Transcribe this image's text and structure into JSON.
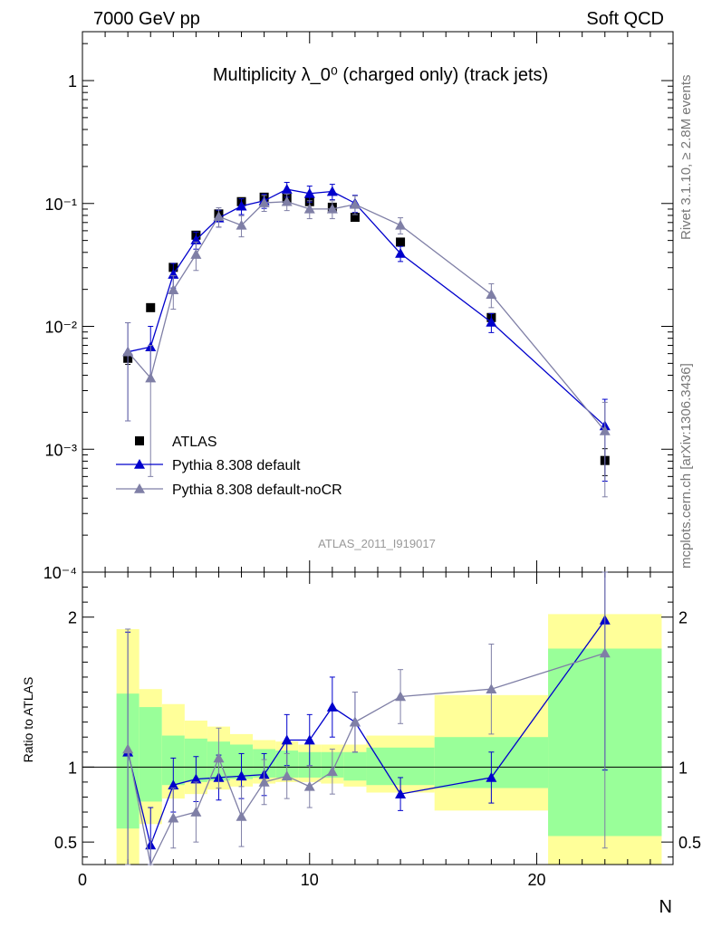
{
  "header": {
    "left": "7000 GeV pp",
    "right": "Soft QCD"
  },
  "side": {
    "top": "Rivet 3.1.10, ≥ 2.8M events",
    "bottom": "mcplots.cern.ch [arXiv:1306.3436]"
  },
  "chart_data": {
    "type": "scatter",
    "title": "Multiplicity λ_0⁰ (charged only) (track jets)",
    "analysis": "ATLAS_2011_I919017",
    "xlabel": "N",
    "ylabel_ratio": "Ratio to ATLAS",
    "xlim": [
      0,
      26
    ],
    "x_ticks": [
      0,
      10,
      20
    ],
    "ylim_main": [
      0.0001,
      2.5
    ],
    "ylog_main": true,
    "y_ticks_main": [
      "10⁻⁴",
      "10⁻³",
      "10⁻²",
      "10⁻¹",
      "1"
    ],
    "ylim_ratio": [
      0.35,
      2.3
    ],
    "y_ticks_ratio": [
      "0.5",
      "1",
      "2"
    ],
    "legend_position": "lower-left",
    "colors": {
      "data": "#000000",
      "default": "#0000cc",
      "noCR": "#7f7fa6",
      "band_inner": "#99ff99",
      "band_outer": "#ffff99"
    },
    "series": [
      {
        "name": "ATLAS",
        "style": "data",
        "x": [
          2,
          3,
          4,
          5,
          6,
          7,
          8,
          9,
          10,
          11,
          12,
          14,
          18,
          23
        ],
        "y": [
          0.0055,
          0.0142,
          0.0302,
          0.0552,
          0.0822,
          0.1035,
          0.1125,
          0.1102,
          0.1035,
          0.0932,
          0.0772,
          0.0485,
          0.0118,
          0.00081
        ],
        "err": [
          0.0006,
          0.0008,
          0.0018,
          0.003,
          0.004,
          0.005,
          0.005,
          0.005,
          0.005,
          0.004,
          0.004,
          0.003,
          0.0009,
          0.0002
        ]
      },
      {
        "name": "Pythia 8.308 default",
        "style": "default",
        "x": [
          2,
          3,
          4,
          5,
          6,
          7,
          8,
          9,
          10,
          11,
          12,
          14,
          18,
          23
        ],
        "y": [
          0.0062,
          0.0068,
          0.0265,
          0.0505,
          0.0762,
          0.0952,
          0.1052,
          0.1305,
          0.1205,
          0.1252,
          0.1005,
          0.0392,
          0.0108,
          0.00155
        ],
        "err": [
          0.0045,
          0.0032,
          0.006,
          0.008,
          0.012,
          0.014,
          0.014,
          0.018,
          0.018,
          0.018,
          0.016,
          0.0055,
          0.0019,
          0.001
        ]
      },
      {
        "name": "Pythia 8.308 default-noCR",
        "style": "noCR",
        "x": [
          2,
          3,
          4,
          5,
          6,
          7,
          8,
          9,
          10,
          11,
          12,
          14,
          18,
          23
        ],
        "y": [
          0.0062,
          0.0038,
          0.0198,
          0.0385,
          0.0782,
          0.0665,
          0.1012,
          0.1035,
          0.0902,
          0.0902,
          0.0982,
          0.0665,
          0.0182,
          0.00141
        ],
        "err": [
          0.0045,
          0.0032,
          0.006,
          0.01,
          0.014,
          0.013,
          0.015,
          0.016,
          0.015,
          0.015,
          0.017,
          0.01,
          0.004,
          0.001
        ]
      }
    ],
    "ratio": {
      "bands": [
        {
          "x0": 1.5,
          "x1": 2.5,
          "inner": [
            0.59,
            1.49
          ],
          "outer": [
            0.1,
            1.92
          ]
        },
        {
          "x0": 2.5,
          "x1": 3.5,
          "inner": [
            0.77,
            1.4
          ],
          "outer": [
            0.62,
            1.52
          ]
        },
        {
          "x0": 3.5,
          "x1": 4.5,
          "inner": [
            0.88,
            1.21
          ],
          "outer": [
            0.79,
            1.42
          ]
        },
        {
          "x0": 4.5,
          "x1": 5.5,
          "inner": [
            0.9,
            1.19
          ],
          "outer": [
            0.82,
            1.31
          ]
        },
        {
          "x0": 5.5,
          "x1": 6.5,
          "inner": [
            0.91,
            1.17
          ],
          "outer": [
            0.85,
            1.27
          ]
        },
        {
          "x0": 6.5,
          "x1": 7.5,
          "inner": [
            0.92,
            1.15
          ],
          "outer": [
            0.87,
            1.22
          ]
        },
        {
          "x0": 7.5,
          "x1": 8.5,
          "inner": [
            0.93,
            1.12
          ],
          "outer": [
            0.89,
            1.18
          ]
        },
        {
          "x0": 8.5,
          "x1": 9.5,
          "inner": [
            0.93,
            1.11
          ],
          "outer": [
            0.9,
            1.17
          ]
        },
        {
          "x0": 9.5,
          "x1": 10.5,
          "inner": [
            0.93,
            1.1
          ],
          "outer": [
            0.9,
            1.15
          ]
        },
        {
          "x0": 10.5,
          "x1": 11.5,
          "inner": [
            0.93,
            1.1
          ],
          "outer": [
            0.89,
            1.15
          ]
        },
        {
          "x0": 11.5,
          "x1": 12.5,
          "inner": [
            0.91,
            1.1
          ],
          "outer": [
            0.87,
            1.15
          ]
        },
        {
          "x0": 12.5,
          "x1": 15.5,
          "inner": [
            0.88,
            1.13
          ],
          "outer": [
            0.83,
            1.21
          ]
        },
        {
          "x0": 15.5,
          "x1": 20.5,
          "inner": [
            0.86,
            1.2
          ],
          "outer": [
            0.71,
            1.48
          ]
        },
        {
          "x0": 20.5,
          "x1": 25.5,
          "inner": [
            0.54,
            1.79
          ],
          "outer": [
            0.1,
            2.02
          ]
        }
      ],
      "series": [
        {
          "name": "Pythia 8.308 default",
          "style": "default",
          "x": [
            2,
            3,
            4,
            5,
            6,
            7,
            8,
            9,
            10,
            11,
            12,
            14,
            18,
            23
          ],
          "y": [
            1.1,
            0.48,
            0.88,
            0.92,
            0.93,
            0.94,
            0.95,
            1.18,
            1.18,
            1.4,
            1.3,
            0.82,
            0.93,
            1.98
          ],
          "err": [
            0.8,
            0.25,
            0.18,
            0.15,
            0.15,
            0.15,
            0.14,
            0.17,
            0.17,
            0.2,
            0.2,
            0.11,
            0.17,
            1.0
          ]
        },
        {
          "name": "Pythia 8.308 default-noCR",
          "style": "noCR",
          "x": [
            2,
            3,
            4,
            5,
            6,
            7,
            8,
            9,
            10,
            11,
            12,
            14,
            18,
            23
          ],
          "y": [
            1.12,
            0.27,
            0.66,
            0.7,
            1.06,
            0.67,
            0.9,
            0.94,
            0.87,
            0.97,
            1.3,
            1.47,
            1.52,
            1.76
          ],
          "err": [
            0.8,
            0.25,
            0.2,
            0.2,
            0.2,
            0.2,
            0.15,
            0.15,
            0.14,
            0.15,
            0.2,
            0.18,
            0.3,
            1.3
          ]
        }
      ]
    }
  }
}
